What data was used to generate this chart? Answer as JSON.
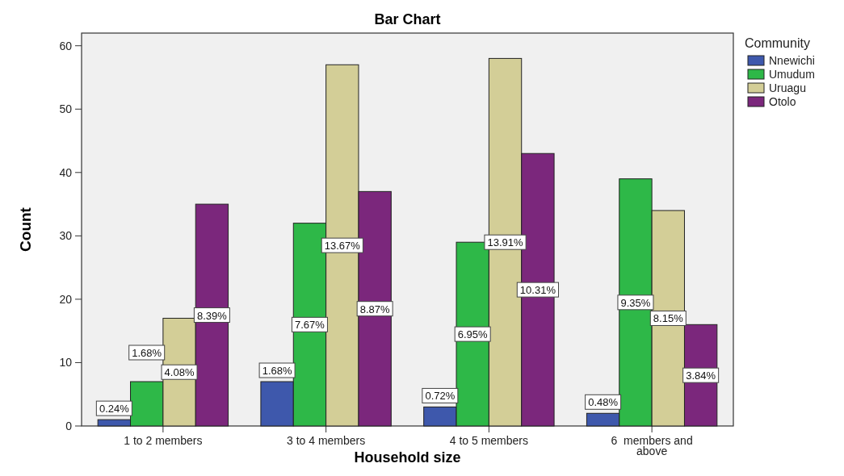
{
  "chart_data": {
    "type": "bar",
    "title": "Bar Chart",
    "xlabel": "Household size",
    "ylabel": "Count",
    "legend_title": "Community",
    "categories": [
      "1 to 2 members",
      "3 to 4 members",
      "4 to 5 members",
      "6  members and above"
    ],
    "series": [
      {
        "name": "Nnewichi",
        "color": "#3e58ac",
        "values": [
          1,
          7,
          3,
          2
        ]
      },
      {
        "name": "Umudum",
        "color": "#2eb848",
        "values": [
          7,
          32,
          29,
          39
        ]
      },
      {
        "name": "Uruagu",
        "color": "#d3ce97",
        "values": [
          17,
          57,
          58,
          34
        ]
      },
      {
        "name": "Otolo",
        "color": "#7b277c",
        "values": [
          35,
          37,
          43,
          16
        ]
      }
    ],
    "annotations": [
      "0.24%",
      "1.68%",
      "0.72%",
      "0.48%",
      "1.68%",
      "7.67%",
      "6.95%",
      "9.35%",
      "4.08%",
      "13.67%",
      "13.91%",
      "8.15%",
      "8.39%",
      "8.87%",
      "10.31%",
      "3.84%"
    ],
    "ylim": [
      0,
      62
    ],
    "yticks": [
      0,
      10,
      20,
      30,
      40,
      50,
      60
    ],
    "legend": "top right",
    "grid": false
  }
}
